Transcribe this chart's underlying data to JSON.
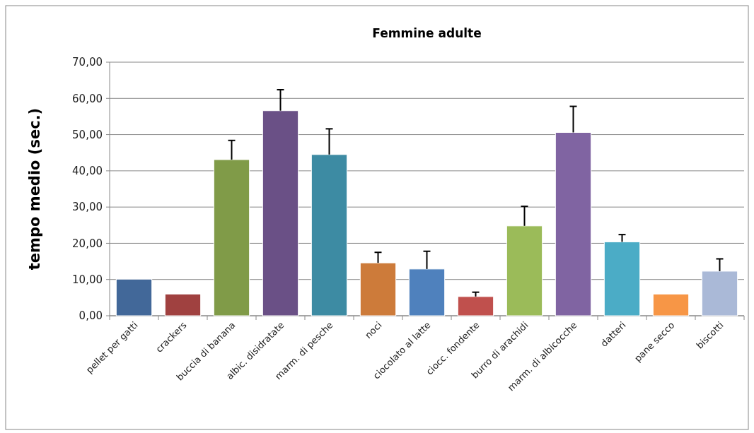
{
  "chart_data": {
    "type": "bar",
    "title": "Femmine adulte",
    "ylabel": "tempo medio (sec.)",
    "categories": [
      "pellet per gatti",
      "crackers",
      "buccia di banana",
      "albic. disidratate",
      "marm. di pesche",
      "noci",
      "ciocolato al latte",
      "ciocc. fondente",
      "burro di arachidi",
      "marm. di albicocche",
      "datteri",
      "pane secco",
      "biscotti"
    ],
    "values": [
      10.1,
      6.0,
      43.1,
      56.6,
      44.5,
      14.6,
      12.9,
      5.3,
      24.8,
      50.6,
      20.4,
      6.0,
      12.3
    ],
    "colors": [
      "#426899",
      "#a04140",
      "#809b48",
      "#6a5086",
      "#3d8ba3",
      "#cd7b3a",
      "#4f81bd",
      "#c0504d",
      "#9bbb59",
      "#8064a2",
      "#4bacc6",
      "#f79646",
      "#aab9d7"
    ],
    "errors": [
      null,
      null,
      [
        43.1,
        48.4
      ],
      [
        56.6,
        62.4
      ],
      [
        44.5,
        51.6
      ],
      [
        14.6,
        17.5
      ],
      [
        12.9,
        17.8
      ],
      [
        5.3,
        6.5
      ],
      [
        24.8,
        30.2
      ],
      [
        50.6,
        57.8
      ],
      [
        20.4,
        22.4
      ],
      null,
      [
        12.3,
        15.7
      ]
    ],
    "ylim": [
      0,
      70
    ],
    "yticks": [
      {
        "value": 0,
        "label": "0,00"
      },
      {
        "value": 10,
        "label": "10,00"
      },
      {
        "value": 20,
        "label": "20,00"
      },
      {
        "value": 30,
        "label": "30,00"
      },
      {
        "value": 40,
        "label": "40,00"
      },
      {
        "value": 50,
        "label": "50,00"
      },
      {
        "value": 60,
        "label": "60,00"
      },
      {
        "value": 70,
        "label": "70,00"
      }
    ],
    "grid": "y"
  }
}
